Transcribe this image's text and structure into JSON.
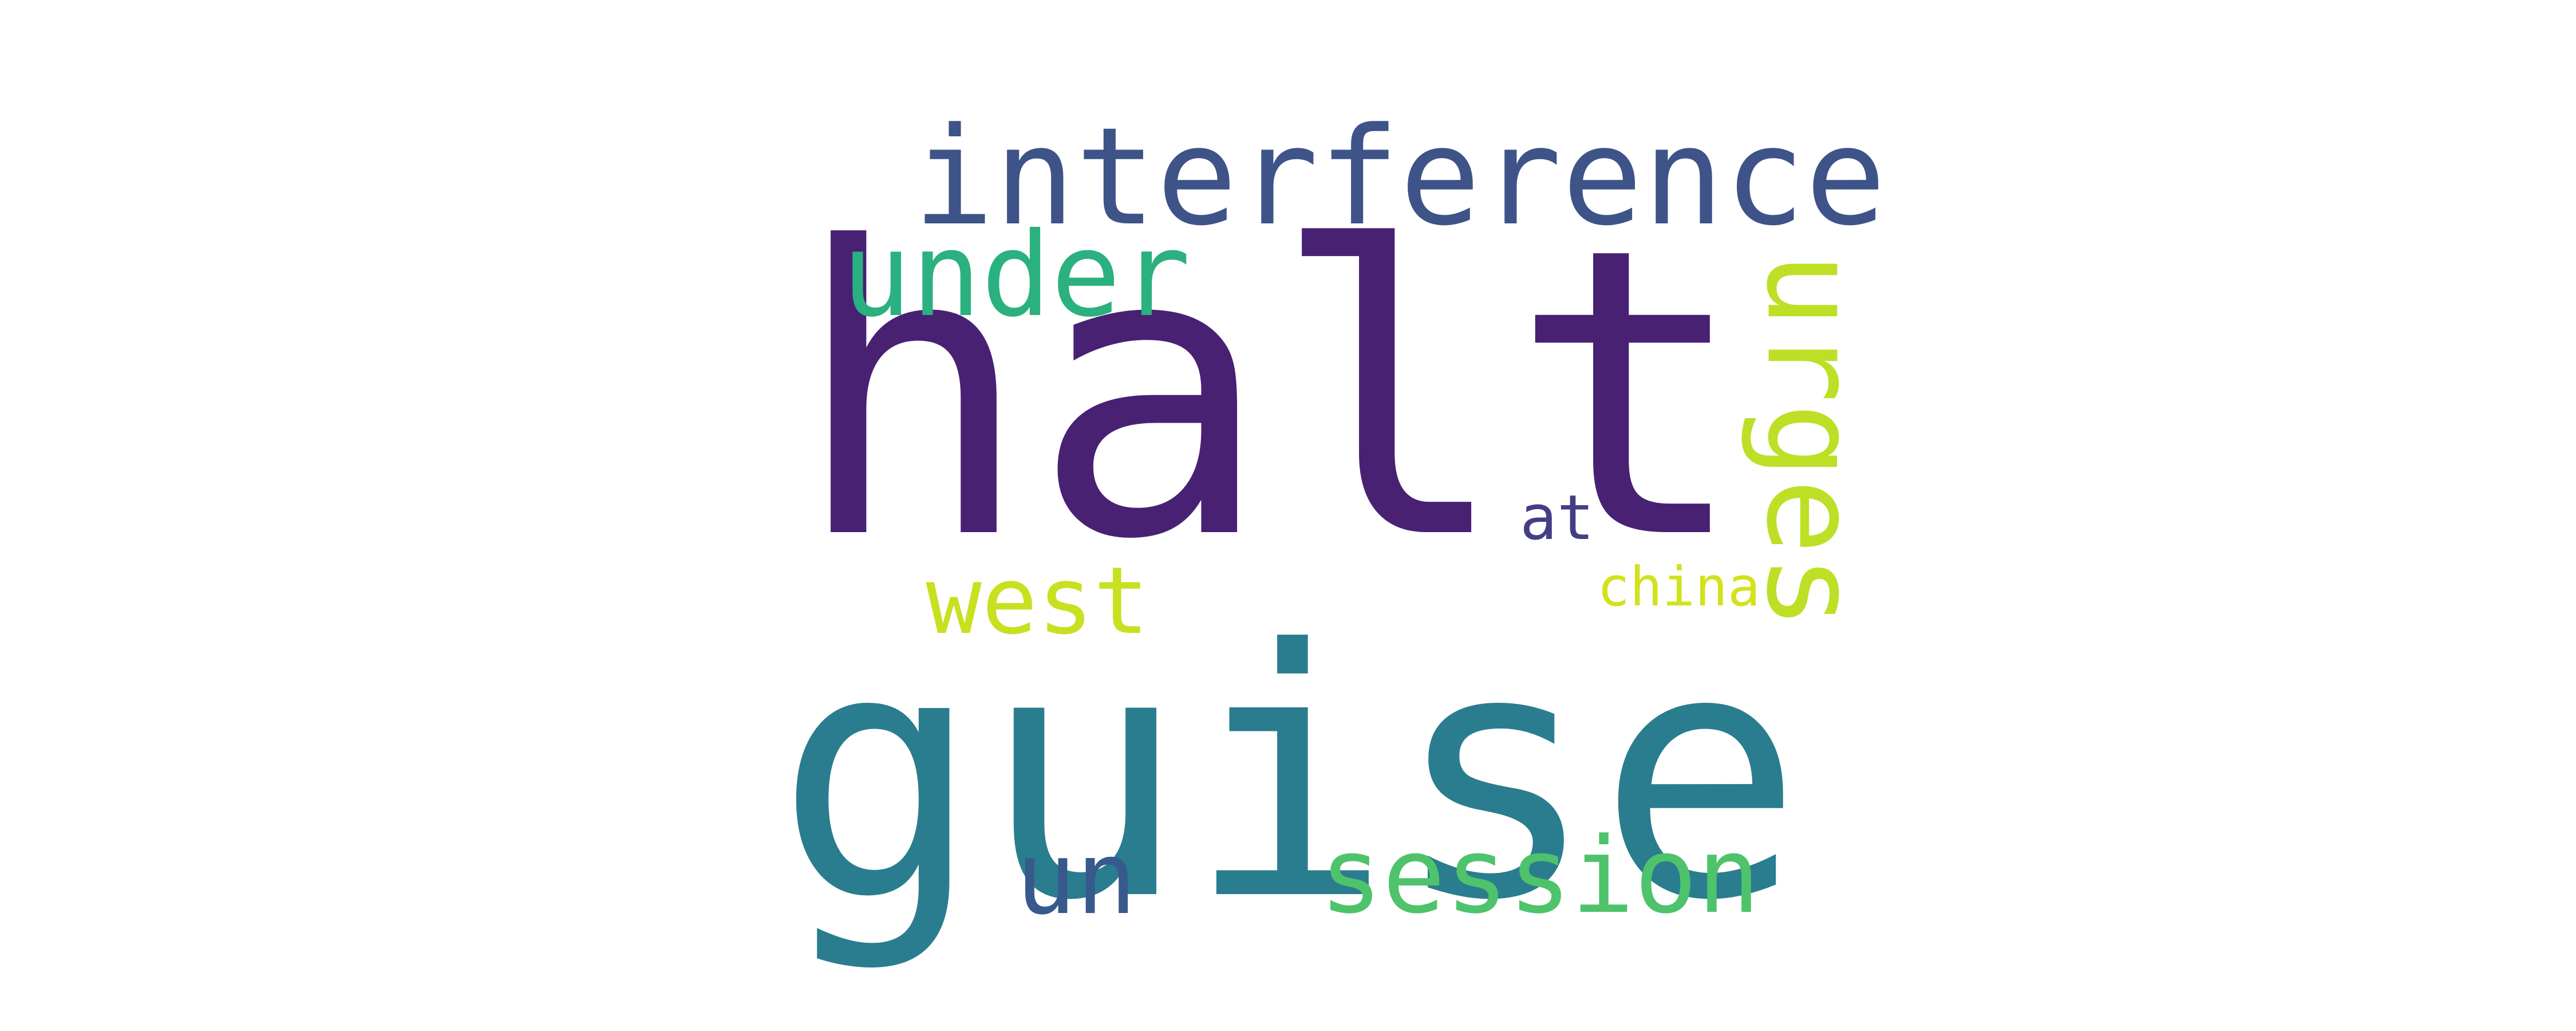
{
  "words": [
    {
      "id": "halt",
      "text": "halt",
      "color": "#482173"
    },
    {
      "id": "guise",
      "text": "guise",
      "color": "#2a7d8e"
    },
    {
      "id": "interference",
      "text": "interference",
      "color": "#3e5388"
    },
    {
      "id": "under",
      "text": "under",
      "color": "#2bb07f"
    },
    {
      "id": "urges",
      "text": "urges",
      "color": "#bddf26"
    },
    {
      "id": "west",
      "text": "west",
      "color": "#c8e020"
    },
    {
      "id": "at",
      "text": "at",
      "color": "#433e85"
    },
    {
      "id": "china",
      "text": "china",
      "color": "#d2e21b"
    },
    {
      "id": "un",
      "text": "un",
      "color": "#37598c"
    },
    {
      "id": "session",
      "text": "session",
      "color": "#4ec36b"
    }
  ]
}
